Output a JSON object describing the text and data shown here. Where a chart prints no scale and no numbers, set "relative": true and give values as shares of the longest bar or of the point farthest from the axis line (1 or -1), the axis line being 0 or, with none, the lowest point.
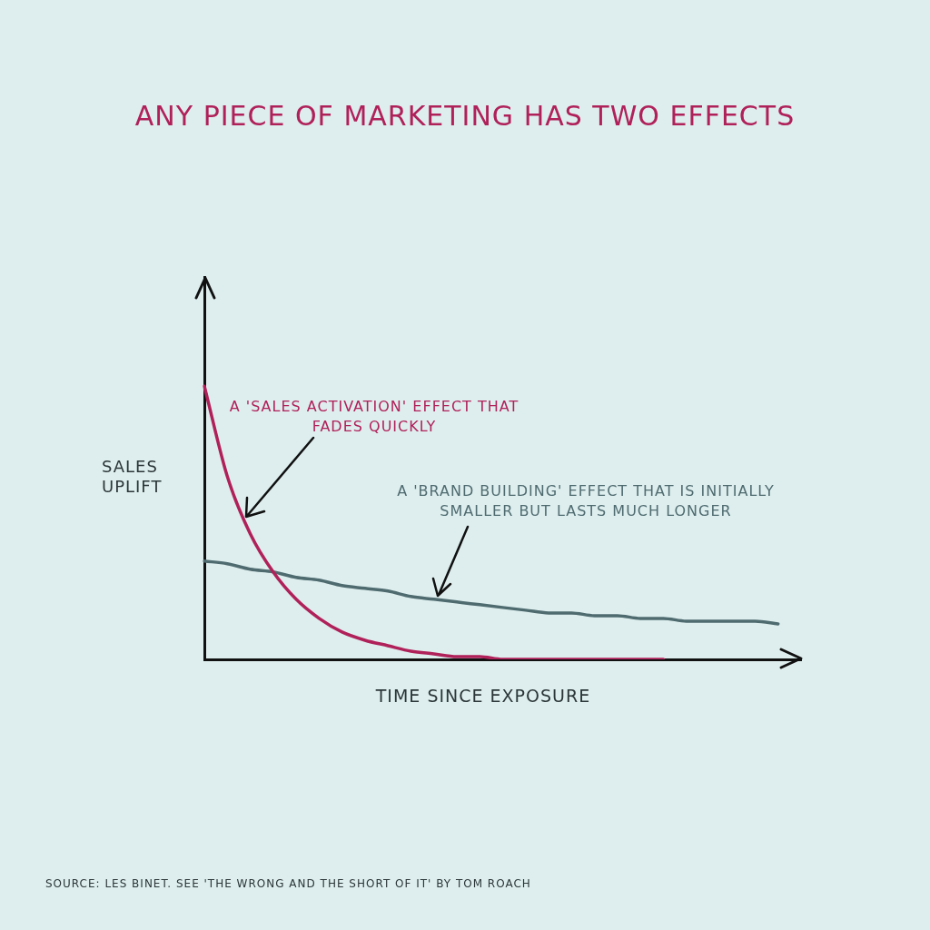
{
  "chart_data": {
    "type": "line",
    "title": "ANY PIECE OF MARKETING HAS TWO EFFECTS",
    "xlabel": "TIME SINCE EXPOSURE",
    "ylabel": "SALES UPLIFT",
    "relative": true,
    "categories": [
      null,
      null,
      null,
      null,
      null,
      null,
      null,
      null,
      null,
      null,
      null,
      null,
      null,
      null,
      null,
      null,
      null,
      null,
      null,
      null,
      null,
      null,
      null,
      null,
      null,
      null,
      null
    ],
    "series": [
      {
        "color": "#b0215a",
        "values": [
          1.0,
          0.67,
          0.46,
          0.32,
          0.22,
          0.15,
          0.1,
          0.07,
          0.05,
          0.03,
          0.02,
          0.01,
          0.01,
          0,
          0,
          0,
          0,
          0,
          0,
          0,
          0,
          null,
          null,
          null,
          null,
          null,
          null
        ]
      },
      {
        "color": "#4f6b70",
        "values": [
          0.36,
          0.35,
          0.33,
          0.32,
          0.3,
          0.29,
          0.27,
          0.26,
          0.25,
          0.23,
          0.22,
          0.21,
          0.2,
          0.19,
          0.18,
          0.17,
          0.17,
          0.16,
          0.16,
          0.15,
          0.15,
          0.14,
          0.14,
          0.14,
          0.14,
          0.13,
          null
        ]
      }
    ],
    "annotations": [
      "A 'SALES ACTIVATION' EFFECT THAT FADES QUICKLY",
      "A 'BRAND BUILDING' EFFECT THAT IS INITIALLY SMALLER BUT LASTS MUCH LONGER",
      "SOURCE: LES BINET. SEE 'THE WRONG AND THE SHORT OF IT' BY TOM ROACH"
    ],
    "grid": false,
    "legend": false,
    "marker": "none"
  }
}
